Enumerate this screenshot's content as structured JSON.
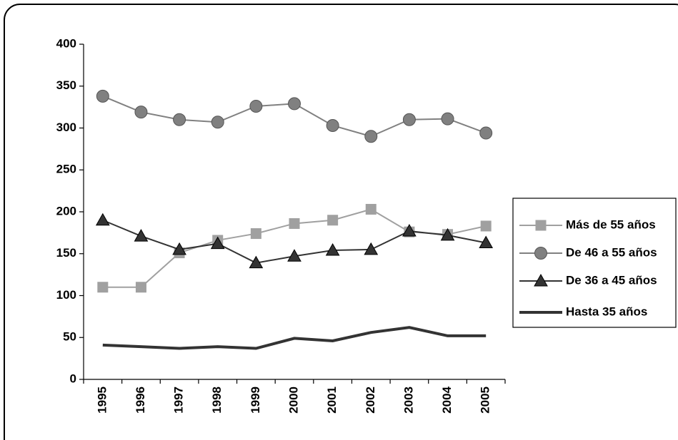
{
  "chart_data": {
    "type": "line",
    "categories": [
      "1995",
      "1996",
      "1997",
      "1998",
      "1999",
      "2000",
      "2001",
      "2002",
      "2003",
      "2004",
      "2005"
    ],
    "series": [
      {
        "name": "Más de 55 años",
        "color": "#a0a0a0",
        "marker": "square",
        "values": [
          110,
          110,
          151,
          166,
          174,
          186,
          190,
          203,
          176,
          173,
          183
        ]
      },
      {
        "name": "De 46 a 55 años",
        "color": "#808080",
        "marker": "circle",
        "values": [
          338,
          319,
          310,
          307,
          326,
          329,
          303,
          290,
          310,
          311,
          294
        ]
      },
      {
        "name": "De 36 a 45 años",
        "color": "#333333",
        "marker": "triangle",
        "values": [
          190,
          171,
          155,
          162,
          139,
          147,
          154,
          155,
          177,
          172,
          163
        ]
      },
      {
        "name": "Hasta 35 años",
        "color": "#333333",
        "values": [
          41,
          39,
          37,
          39,
          37,
          49,
          46,
          56,
          62,
          52,
          52
        ]
      }
    ],
    "ylim": [
      0,
      400
    ],
    "yticks": [
      0,
      50,
      100,
      150,
      200,
      250,
      300,
      350,
      400
    ],
    "grid": false,
    "legend": "right"
  }
}
